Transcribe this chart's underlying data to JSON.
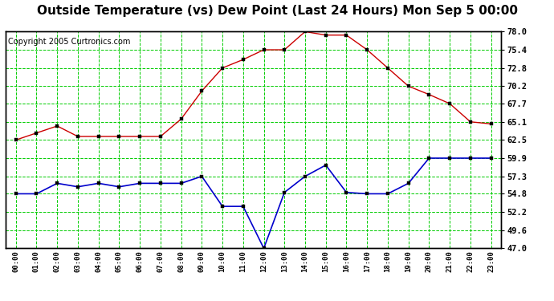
{
  "title": "Outside Temperature (vs) Dew Point (Last 24 Hours) Mon Sep 5 00:00",
  "copyright": "Copyright 2005 Curtronics.com",
  "hours": [
    "00:00",
    "01:00",
    "02:00",
    "03:00",
    "04:00",
    "05:00",
    "06:00",
    "07:00",
    "08:00",
    "09:00",
    "10:00",
    "11:00",
    "12:00",
    "13:00",
    "14:00",
    "15:00",
    "16:00",
    "17:00",
    "18:00",
    "19:00",
    "20:00",
    "21:00",
    "22:00",
    "23:00"
  ],
  "temp": [
    62.5,
    63.5,
    64.5,
    63.0,
    63.0,
    63.0,
    63.0,
    63.0,
    65.5,
    69.5,
    72.8,
    74.0,
    75.4,
    75.4,
    78.0,
    77.5,
    77.5,
    75.4,
    72.8,
    70.2,
    69.0,
    67.7,
    65.1,
    64.8
  ],
  "dew": [
    54.8,
    54.8,
    56.3,
    55.8,
    56.3,
    55.8,
    56.3,
    56.3,
    56.3,
    57.3,
    53.0,
    53.0,
    47.0,
    55.0,
    57.3,
    58.9,
    55.0,
    54.8,
    54.8,
    56.3,
    59.9,
    59.9,
    59.9,
    59.9
  ],
  "temp_color": "#cc0000",
  "dew_color": "#0000cc",
  "bg_color": "#ffffff",
  "plot_bg": "#ffffff",
  "grid_color": "#00cc00",
  "grid_color_minor": "#006600",
  "title_fontsize": 11,
  "copyright_fontsize": 7,
  "ylabel_values": [
    47.0,
    49.6,
    52.2,
    54.8,
    57.3,
    59.9,
    62.5,
    65.1,
    67.7,
    70.2,
    72.8,
    75.4,
    78.0
  ],
  "ymin": 47.0,
  "ymax": 78.0
}
